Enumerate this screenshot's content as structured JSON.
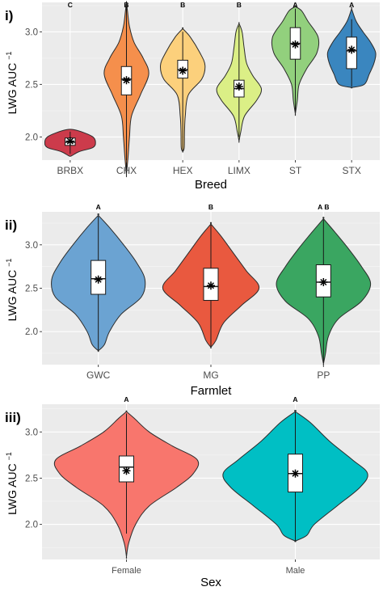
{
  "chart_data": [
    {
      "panel_label": "i)",
      "type": "violin",
      "xlabel": "Breed",
      "ylabel": "LWG AUC",
      "ylabel_superscript": "−1",
      "ylim": [
        1.78,
        3.28
      ],
      "yticks": [
        "2.0",
        "2.5",
        "3.0"
      ],
      "categories": [
        "BRBX",
        "CHX",
        "HEX",
        "LIMX",
        "ST",
        "STX"
      ],
      "letters": [
        "C",
        "B",
        "B",
        "B",
        "A",
        "A"
      ],
      "colors": [
        "#cc3b4b",
        "#f58f4c",
        "#fcd07c",
        "#dbef86",
        "#92d07d",
        "#3a86bf"
      ],
      "groups": [
        {
          "min": 1.84,
          "q1": 1.92,
          "median": 1.95,
          "q3": 1.99,
          "max": 2.05,
          "mean": 1.96,
          "shape": [
            [
              1.82,
              0.05
            ],
            [
              1.86,
              0.35
            ],
            [
              1.9,
              0.9
            ],
            [
              1.95,
              1.0
            ],
            [
              2.0,
              0.9
            ],
            [
              2.04,
              0.55
            ],
            [
              2.07,
              0.12
            ]
          ]
        },
        {
          "min": 1.66,
          "q1": 2.4,
          "median": 2.55,
          "q3": 2.67,
          "max": 3.24,
          "mean": 2.54,
          "shape": [
            [
              1.64,
              0.0
            ],
            [
              1.8,
              0.06
            ],
            [
              2.0,
              0.12
            ],
            [
              2.2,
              0.2
            ],
            [
              2.4,
              0.55
            ],
            [
              2.6,
              0.88
            ],
            [
              2.75,
              0.66
            ],
            [
              2.9,
              0.3
            ],
            [
              3.05,
              0.12
            ],
            [
              3.2,
              0.04
            ],
            [
              3.28,
              0.0
            ]
          ]
        },
        {
          "min": 1.86,
          "q1": 2.56,
          "median": 2.64,
          "q3": 2.73,
          "max": 3.0,
          "mean": 2.63,
          "shape": [
            [
              1.86,
              0.0
            ],
            [
              1.9,
              0.06
            ],
            [
              2.05,
              0.07
            ],
            [
              2.2,
              0.1
            ],
            [
              2.4,
              0.22
            ],
            [
              2.55,
              0.75
            ],
            [
              2.68,
              0.88
            ],
            [
              2.8,
              0.68
            ],
            [
              2.95,
              0.3
            ],
            [
              3.03,
              0.0
            ]
          ]
        },
        {
          "min": 2.0,
          "q1": 2.38,
          "median": 2.46,
          "q3": 2.54,
          "max": 3.06,
          "mean": 2.48,
          "shape": [
            [
              1.96,
              0.0
            ],
            [
              2.05,
              0.07
            ],
            [
              2.2,
              0.22
            ],
            [
              2.35,
              0.7
            ],
            [
              2.46,
              0.88
            ],
            [
              2.58,
              0.55
            ],
            [
              2.7,
              0.3
            ],
            [
              2.85,
              0.2
            ],
            [
              3.0,
              0.12
            ],
            [
              3.08,
              0.0
            ]
          ]
        },
        {
          "min": 2.24,
          "q1": 2.74,
          "median": 2.89,
          "q3": 3.04,
          "max": 3.22,
          "mean": 2.88,
          "shape": [
            [
              2.22,
              0.0
            ],
            [
              2.35,
              0.08
            ],
            [
              2.5,
              0.15
            ],
            [
              2.65,
              0.45
            ],
            [
              2.8,
              0.85
            ],
            [
              2.95,
              0.9
            ],
            [
              3.1,
              0.5
            ],
            [
              3.2,
              0.25
            ],
            [
              3.24,
              0.0
            ]
          ]
        },
        {
          "min": 2.48,
          "q1": 2.65,
          "median": 2.82,
          "q3": 2.95,
          "max": 3.12,
          "mean": 2.83,
          "shape": [
            [
              2.47,
              0.0
            ],
            [
              2.5,
              0.5
            ],
            [
              2.6,
              0.7
            ],
            [
              2.7,
              0.88
            ],
            [
              2.8,
              0.95
            ],
            [
              2.9,
              0.75
            ],
            [
              3.0,
              0.45
            ],
            [
              3.1,
              0.18
            ],
            [
              3.22,
              0.0
            ]
          ]
        }
      ]
    },
    {
      "panel_label": "ii)",
      "type": "violin",
      "xlabel": "Farmlet",
      "ylabel": "LWG AUC",
      "ylabel_superscript": "−1",
      "ylim": [
        1.62,
        3.38
      ],
      "yticks": [
        "2.0",
        "2.5",
        "3.0"
      ],
      "categories": [
        "GWC",
        "MG",
        "PP"
      ],
      "letters": [
        "A",
        "B",
        "A B"
      ],
      "colors": [
        "#6ba3d2",
        "#e9593f",
        "#3aa661"
      ],
      "groups": [
        {
          "min": 1.78,
          "q1": 2.43,
          "median": 2.61,
          "q3": 2.82,
          "max": 3.33,
          "mean": 2.6,
          "shape": [
            [
              1.78,
              0.0
            ],
            [
              1.85,
              0.12
            ],
            [
              2.0,
              0.22
            ],
            [
              2.2,
              0.45
            ],
            [
              2.4,
              0.85
            ],
            [
              2.6,
              0.92
            ],
            [
              2.8,
              0.75
            ],
            [
              3.0,
              0.5
            ],
            [
              3.2,
              0.22
            ],
            [
              3.34,
              0.0
            ]
          ]
        },
        {
          "min": 1.82,
          "q1": 2.36,
          "median": 2.52,
          "q3": 2.73,
          "max": 3.23,
          "mean": 2.53,
          "shape": [
            [
              1.82,
              0.0
            ],
            [
              1.9,
              0.1
            ],
            [
              2.1,
              0.25
            ],
            [
              2.3,
              0.6
            ],
            [
              2.5,
              0.95
            ],
            [
              2.7,
              0.7
            ],
            [
              2.9,
              0.45
            ],
            [
              3.1,
              0.2
            ],
            [
              3.24,
              0.0
            ]
          ]
        },
        {
          "min": 1.64,
          "q1": 2.4,
          "median": 2.57,
          "q3": 2.77,
          "max": 3.29,
          "mean": 2.57,
          "shape": [
            [
              1.63,
              0.0
            ],
            [
              1.75,
              0.04
            ],
            [
              1.95,
              0.1
            ],
            [
              2.15,
              0.3
            ],
            [
              2.35,
              0.75
            ],
            [
              2.55,
              0.93
            ],
            [
              2.75,
              0.75
            ],
            [
              2.95,
              0.5
            ],
            [
              3.15,
              0.22
            ],
            [
              3.3,
              0.0
            ]
          ]
        }
      ]
    },
    {
      "panel_label": "iii)",
      "type": "violin",
      "xlabel": "Sex",
      "ylabel": "LWG AUC",
      "ylabel_superscript": "−1",
      "ylim": [
        1.62,
        3.3
      ],
      "yticks": [
        "2.0",
        "2.5",
        "3.0"
      ],
      "categories": [
        "Female",
        "Male"
      ],
      "letters": [
        "A",
        "A"
      ],
      "colors": [
        "#f8766d",
        "#00bfc4"
      ],
      "groups": [
        {
          "min": 1.9,
          "q1": 2.46,
          "median": 2.62,
          "q3": 2.74,
          "max": 3.2,
          "mean": 2.58,
          "shape": [
            [
              1.65,
              0.0
            ],
            [
              1.8,
              0.03
            ],
            [
              2.0,
              0.12
            ],
            [
              2.2,
              0.3
            ],
            [
              2.4,
              0.66
            ],
            [
              2.55,
              0.88
            ],
            [
              2.7,
              0.93
            ],
            [
              2.85,
              0.6
            ],
            [
              3.0,
              0.3
            ],
            [
              3.15,
              0.1
            ],
            [
              3.22,
              0.0
            ]
          ]
        },
        {
          "min": 1.82,
          "q1": 2.35,
          "median": 2.55,
          "q3": 2.76,
          "max": 3.22,
          "mean": 2.55,
          "shape": [
            [
              1.82,
              0.0
            ],
            [
              1.88,
              0.15
            ],
            [
              2.0,
              0.25
            ],
            [
              2.2,
              0.55
            ],
            [
              2.4,
              0.85
            ],
            [
              2.55,
              0.95
            ],
            [
              2.7,
              0.75
            ],
            [
              2.9,
              0.45
            ],
            [
              3.1,
              0.2
            ],
            [
              3.22,
              0.0
            ]
          ]
        }
      ]
    }
  ]
}
